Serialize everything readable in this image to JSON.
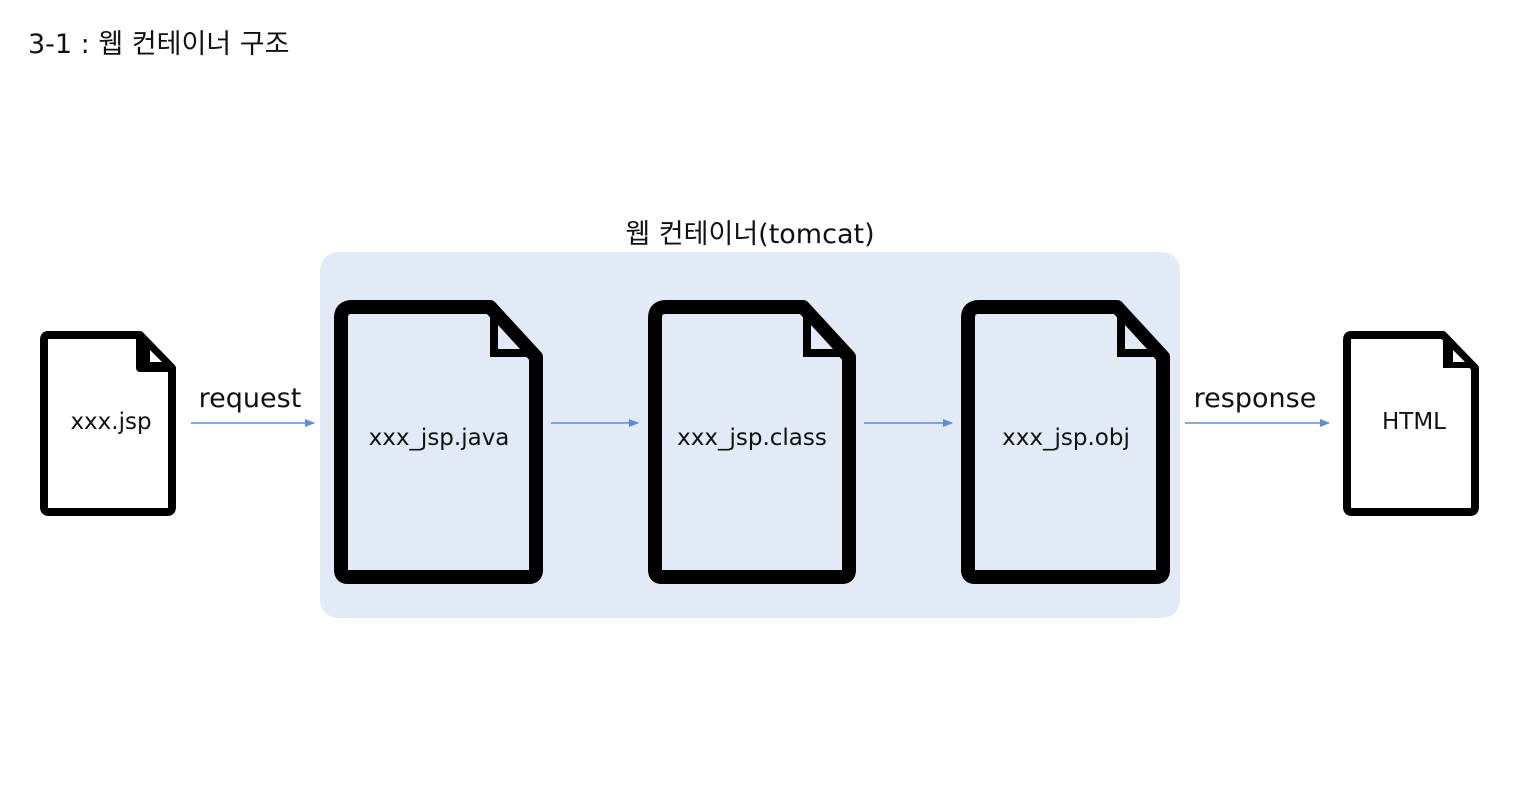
{
  "title": "3-1 : 웹 컨테이너 구조",
  "container": {
    "label": "웹 컨테이너(tomcat)",
    "fill_color": "#e1eaf5"
  },
  "files": {
    "input": {
      "name": "xxx.jsp",
      "icon": "document-icon"
    },
    "java": {
      "name": "xxx_jsp.java",
      "icon": "document-icon"
    },
    "class": {
      "name": "xxx_jsp.class",
      "icon": "document-icon"
    },
    "obj": {
      "name": "xxx_jsp.obj",
      "icon": "document-icon"
    },
    "output": {
      "name": "HTML",
      "icon": "document-icon"
    }
  },
  "arrows": {
    "request_label": "request",
    "response_label": "response",
    "color": "#5b8fd0"
  },
  "icon_stroke_color": "#000000"
}
